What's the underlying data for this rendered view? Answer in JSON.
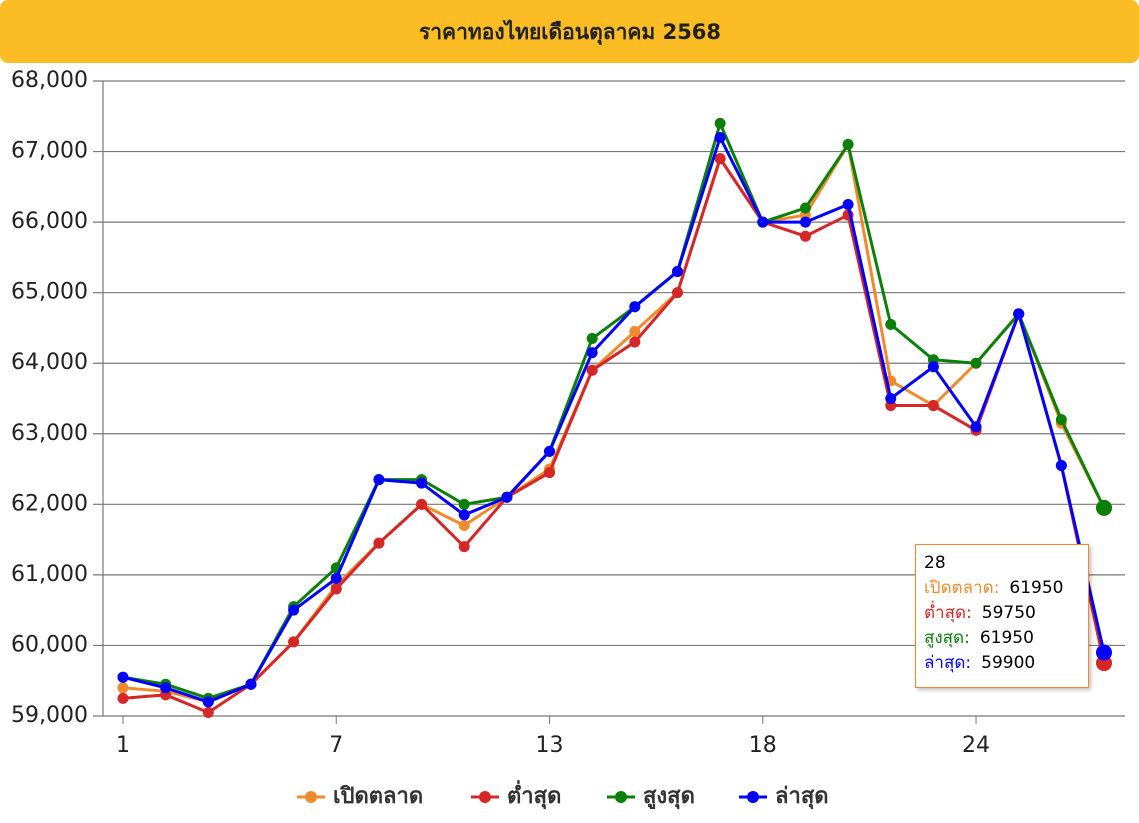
{
  "chart_data": {
    "type": "line",
    "title": "ราคาทองไทยเดือนตุลาคม 2568",
    "categories": [
      "1",
      null,
      null,
      null,
      null,
      "7",
      null,
      null,
      null,
      null,
      "13",
      null,
      null,
      null,
      null,
      "18",
      null,
      null,
      null,
      null,
      "24",
      null,
      null,
      "28"
    ],
    "series": [
      {
        "name": "เปิดตลาด",
        "color": "#f08a2c",
        "values": [
          59400,
          59350,
          59200,
          59450,
          60050,
          60850,
          61450,
          62000,
          61700,
          62100,
          62500,
          63900,
          64450,
          65000,
          66900,
          66000,
          66100,
          67100,
          63750,
          63400,
          64000,
          64700,
          63150,
          61950
        ]
      },
      {
        "name": "ต่ำสุด",
        "color": "#d62728",
        "values": [
          59250,
          59300,
          59050,
          59450,
          60050,
          60800,
          61450,
          62000,
          61400,
          62100,
          62450,
          63900,
          64300,
          65000,
          66900,
          66000,
          65800,
          66100,
          63400,
          63400,
          63050,
          64700,
          62550,
          59750
        ]
      },
      {
        "name": "สูงสุด",
        "color": "#0a800a",
        "values": [
          59550,
          59450,
          59250,
          59450,
          60550,
          61100,
          62350,
          62350,
          62000,
          62100,
          62750,
          64350,
          64800,
          65300,
          67400,
          66000,
          66200,
          67100,
          64550,
          64050,
          64000,
          64700,
          63200,
          61950
        ]
      },
      {
        "name": "ล่าสุด",
        "color": "#0000ff",
        "values": [
          59550,
          59400,
          59200,
          59450,
          60500,
          60950,
          62350,
          62300,
          61850,
          62100,
          62750,
          64150,
          64800,
          65300,
          67200,
          66000,
          66000,
          66250,
          63500,
          63950,
          63100,
          64700,
          62550,
          59900
        ]
      }
    ],
    "ylim": [
      59000,
      68000
    ],
    "yticks": [
      {
        "value": 59000,
        "label": "59,000"
      },
      {
        "value": 60000,
        "label": "60,000"
      },
      {
        "value": 61000,
        "label": "61,000"
      },
      {
        "value": 62000,
        "label": "62,000"
      },
      {
        "value": 63000,
        "label": "63,000"
      },
      {
        "value": 64000,
        "label": "64,000"
      },
      {
        "value": 65000,
        "label": "65,000"
      },
      {
        "value": 66000,
        "label": "66,000"
      },
      {
        "value": 67000,
        "label": "67,000"
      },
      {
        "value": 68000,
        "label": "68,000"
      }
    ],
    "grid": true,
    "legend": "bottom"
  }
}
